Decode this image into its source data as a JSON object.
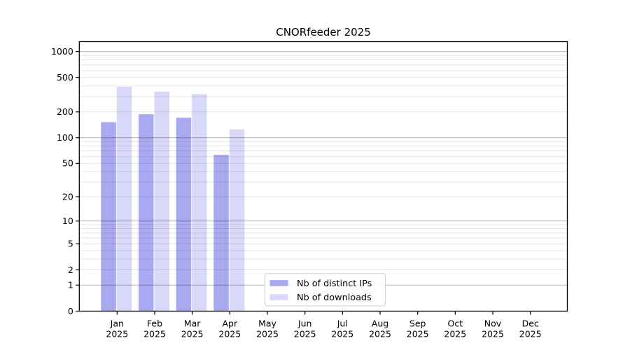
{
  "chart_data": {
    "type": "bar",
    "title": "CNORfeeder 2025",
    "x_year": "2025",
    "x_categories": [
      "Jan",
      "Feb",
      "Mar",
      "Apr",
      "May",
      "Jun",
      "Jul",
      "Aug",
      "Sep",
      "Oct",
      "Nov",
      "Dec"
    ],
    "series": [
      {
        "key": "distinct-ips",
        "name": "Nb of distinct IPs",
        "color": "#a9a9f0",
        "values": [
          152,
          188,
          171,
          63,
          null,
          null,
          null,
          null,
          null,
          null,
          null,
          null
        ]
      },
      {
        "key": "downloads",
        "name": "Nb of downloads",
        "color": "#d8d8f8",
        "values": [
          390,
          343,
          322,
          125,
          null,
          null,
          null,
          null,
          null,
          null,
          null,
          null
        ]
      }
    ],
    "y_axis": {
      "scale": "log1p",
      "ticks": [
        0,
        1,
        2,
        5,
        10,
        20,
        50,
        100,
        200,
        500,
        1000
      ],
      "ylim": [
        0,
        1300
      ],
      "major_gridlines_at": [
        1,
        10,
        100,
        1000
      ]
    },
    "grid": "on",
    "legend": {
      "position": "lower-center"
    }
  }
}
